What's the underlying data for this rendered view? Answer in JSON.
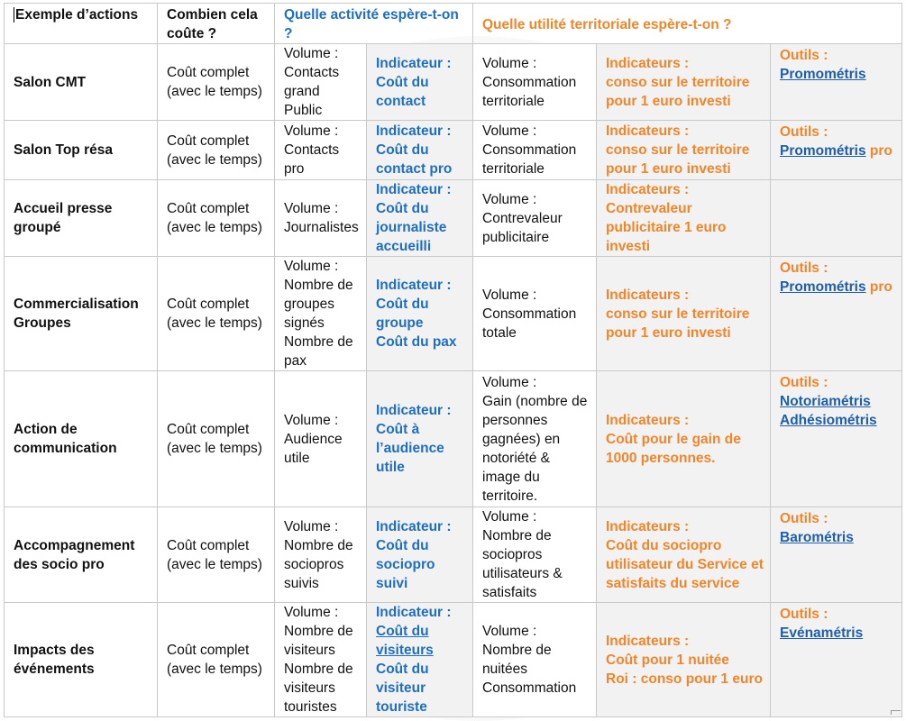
{
  "header": {
    "col1": "Exemple d’actions",
    "col2": "Combien cela coûte ?",
    "col3": "Quelle activité espère-t-on ?",
    "col4": "Quelle utilité territoriale  espère-t-on ?"
  },
  "colors": {
    "blue": "#1f6fbf",
    "orange": "#f0862a",
    "link": "#1f5fa8",
    "shade": "#f2f2f2"
  },
  "rows": [
    {
      "action": "Salon CMT",
      "cost": [
        "Coût complet",
        "(avec le temps)"
      ],
      "activity": [
        "Volume :",
        "Contacts",
        "grand",
        "Public"
      ],
      "activity_ind": [
        "Indicateur :",
        "Coût du",
        "contact"
      ],
      "territory": [
        "Volume :",
        "Consommation",
        "territoriale"
      ],
      "territory_ind": [
        "Indicateurs :",
        "conso sur le  territoire",
        "pour 1 euro investi"
      ],
      "tools_label": "Outils :",
      "tools": [
        "Promométris"
      ],
      "tools_suffix": ""
    },
    {
      "action": "Salon Top résa",
      "cost": [
        "Coût complet",
        "(avec le temps)"
      ],
      "activity": [
        "Volume :",
        "Contacts",
        "pro"
      ],
      "activity_ind": [
        "Indicateur :",
        "Coût du",
        "contact pro"
      ],
      "territory": [
        "Volume :",
        "Consommation",
        "territoriale"
      ],
      "territory_ind": [
        "Indicateurs :",
        "conso sur le  territoire",
        "pour 1 euro investi"
      ],
      "tools_label": "Outils :",
      "tools": [
        "Promométris"
      ],
      "tools_suffix": " pro"
    },
    {
      "action": [
        "Accueil presse",
        "groupé"
      ],
      "cost": [
        "Coût complet",
        "(avec le temps)"
      ],
      "activity": [
        "Volume :",
        "Journalistes"
      ],
      "activity_ind": [
        "Indicateur :",
        "Coût du",
        "journaliste",
        "accueilli"
      ],
      "territory": [
        "Volume :",
        "Contrevaleur",
        "publicitaire"
      ],
      "territory_ind": [
        "Indicateurs :",
        "Contrevaleur",
        "publicitaire 1 euro",
        "investi"
      ],
      "tools_label": "",
      "tools": [],
      "tools_suffix": ""
    },
    {
      "action": [
        "Commercialisation",
        "Groupes"
      ],
      "cost": [
        "Coût complet",
        "(avec le temps)"
      ],
      "activity": [
        "Volume :",
        "Nombre de",
        "groupes",
        "signés",
        "Nombre de",
        "pax"
      ],
      "activity_ind": [
        "Indicateur :",
        "Coût du",
        "groupe",
        "Coût du pax"
      ],
      "territory": [
        "Volume :",
        "Consommation",
        "totale"
      ],
      "territory_ind": [
        "Indicateurs :",
        "conso sur le  territoire",
        "pour 1 euro investi"
      ],
      "tools_label": "Outils :",
      "tools": [
        "Promométris"
      ],
      "tools_suffix": " pro"
    },
    {
      "action": [
        "Action de",
        "communication"
      ],
      "cost": [
        "Coût complet",
        "(avec le temps)"
      ],
      "activity": [
        "Volume :",
        "Audience",
        "utile"
      ],
      "activity_ind": [
        "Indicateur :",
        "Coût à",
        "l’audience",
        "utile"
      ],
      "territory": [
        "Volume :",
        "Gain (nombre de",
        "personnes",
        "gagnées) en",
        "notoriété &",
        "image du",
        "territoire."
      ],
      "territory_ind": [
        "Indicateurs :",
        "Coût pour le gain de",
        "1000 personnes."
      ],
      "tools_label": "Outils :",
      "tools": [
        "Notoriamétris",
        "Adhésiométris"
      ],
      "tools_suffix": ""
    },
    {
      "action": [
        "Accompagnement",
        "des socio pro"
      ],
      "cost": [
        "Coût complet",
        "(avec le temps)"
      ],
      "activity": [
        "Volume :",
        "Nombre de",
        "sociopros",
        "suivis"
      ],
      "activity_ind": [
        "Indicateur :",
        "Coût du",
        "sociopro",
        "suivi"
      ],
      "territory": [
        "Volume :",
        "Nombre de",
        "sociopros",
        "utilisateurs &",
        "satisfaits"
      ],
      "territory_ind": [
        "Indicateurs :",
        "Coût du sociopro",
        "utilisateur du Service et",
        "satisfaits du service"
      ],
      "tools_label": "Outils :",
      "tools": [
        "Barométris"
      ],
      "tools_suffix": ""
    },
    {
      "action": [
        "Impacts des",
        "événements"
      ],
      "cost": [
        "Coût complet",
        "(avec le temps)"
      ],
      "activity": [
        "Volume :",
        "Nombre de",
        "visiteurs",
        "Nombre de",
        "visiteurs",
        "touristes"
      ],
      "activity_ind": [
        "Indicateur :",
        "Coût du ",
        "visiteurs",
        "Coût du",
        "visiteur",
        "touriste"
      ],
      "territory": [
        "Volume :",
        "Nombre de",
        "nuitées",
        "Consommation"
      ],
      "territory_ind": [
        "Indicateurs :",
        "Coût pour 1 nuitée",
        "Roi : conso pour 1 euro"
      ],
      "tools_label": "Outils :",
      "tools": [
        "Evénamétris"
      ],
      "tools_suffix": ""
    }
  ]
}
